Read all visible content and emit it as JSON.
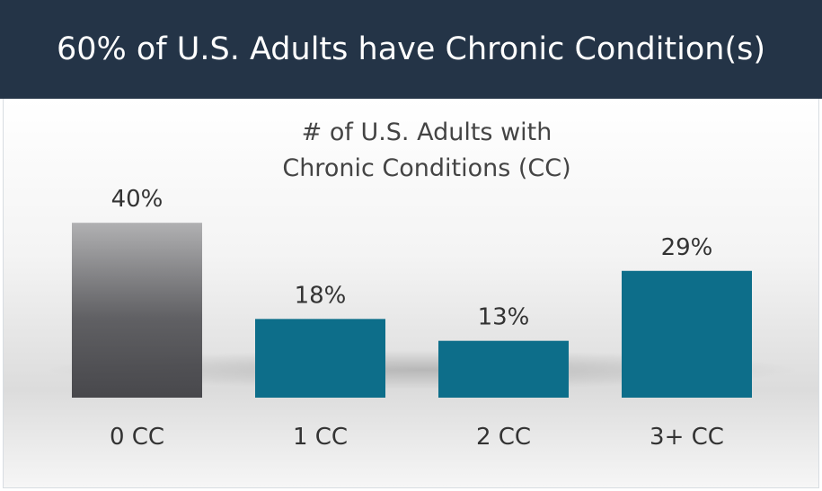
{
  "header": {
    "title": "60% of U.S. Adults have Chronic Condition(s)"
  },
  "chart_data": {
    "type": "bar",
    "title": "# of U.S. Adults with Chronic Conditions (CC)",
    "categories": [
      "0 CC",
      "1 CC",
      "2 CC",
      "3+ CC"
    ],
    "values": [
      40,
      18,
      13,
      29
    ],
    "value_labels": [
      "40%",
      "18%",
      "13%",
      "29%"
    ],
    "colors": [
      "#48484c",
      "#0d6e8a",
      "#0d6e8a",
      "#0d6e8a"
    ]
  }
}
